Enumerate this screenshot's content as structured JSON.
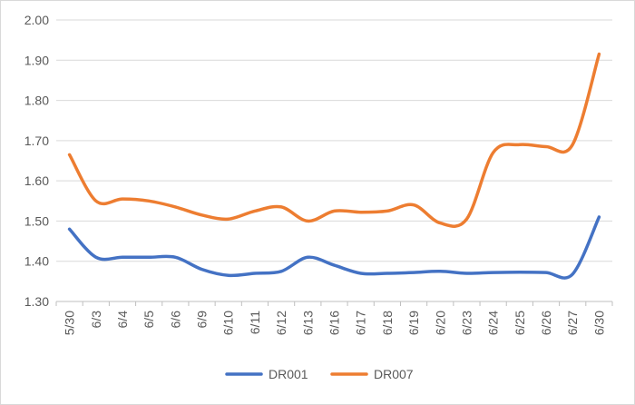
{
  "chart_data": {
    "type": "line",
    "title": "",
    "xlabel": "",
    "ylabel": "",
    "ylim": [
      1.3,
      2.0
    ],
    "y_ticks": [
      "1.30",
      "1.40",
      "1.50",
      "1.60",
      "1.70",
      "1.80",
      "1.90",
      "2.00"
    ],
    "categories": [
      "5/30",
      "6/3",
      "6/4",
      "6/5",
      "6/6",
      "6/9",
      "6/10",
      "6/11",
      "6/12",
      "6/13",
      "6/16",
      "6/17",
      "6/18",
      "6/19",
      "6/20",
      "6/23",
      "6/24",
      "6/25",
      "6/26",
      "6/27",
      "6/30"
    ],
    "series": [
      {
        "name": "DR001",
        "color": "#4472c4",
        "values": [
          1.48,
          1.41,
          1.41,
          1.41,
          1.41,
          1.38,
          1.365,
          1.37,
          1.375,
          1.41,
          1.39,
          1.37,
          1.37,
          1.372,
          1.375,
          1.37,
          1.372,
          1.373,
          1.372,
          1.368,
          1.51
        ]
      },
      {
        "name": "DR007",
        "color": "#ed7d31",
        "values": [
          1.665,
          1.55,
          1.555,
          1.55,
          1.535,
          1.515,
          1.505,
          1.525,
          1.535,
          1.5,
          1.525,
          1.522,
          1.525,
          1.54,
          1.495,
          1.505,
          1.67,
          1.69,
          1.685,
          1.69,
          1.915
        ]
      }
    ],
    "grid": true,
    "legend": "bottom"
  }
}
